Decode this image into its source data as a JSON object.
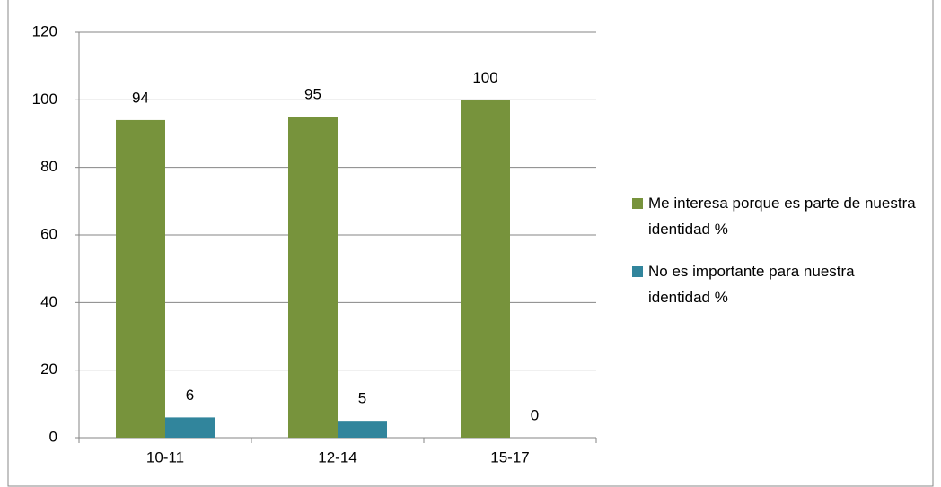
{
  "chart_data": {
    "type": "bar",
    "categories": [
      "10-11",
      "12-14",
      "15-17"
    ],
    "series": [
      {
        "name": "Me interesa porque es parte de nuestra identidad %",
        "color": "#77933c",
        "values": [
          94,
          95,
          100
        ]
      },
      {
        "name": "No es importante para nuestra identidad %",
        "color": "#31859c",
        "values": [
          6,
          5,
          0
        ]
      }
    ],
    "ylim": [
      0,
      120
    ],
    "yticks": [
      0,
      20,
      40,
      60,
      80,
      100,
      120
    ],
    "grid": true,
    "legend": "right",
    "data_labels": true
  }
}
